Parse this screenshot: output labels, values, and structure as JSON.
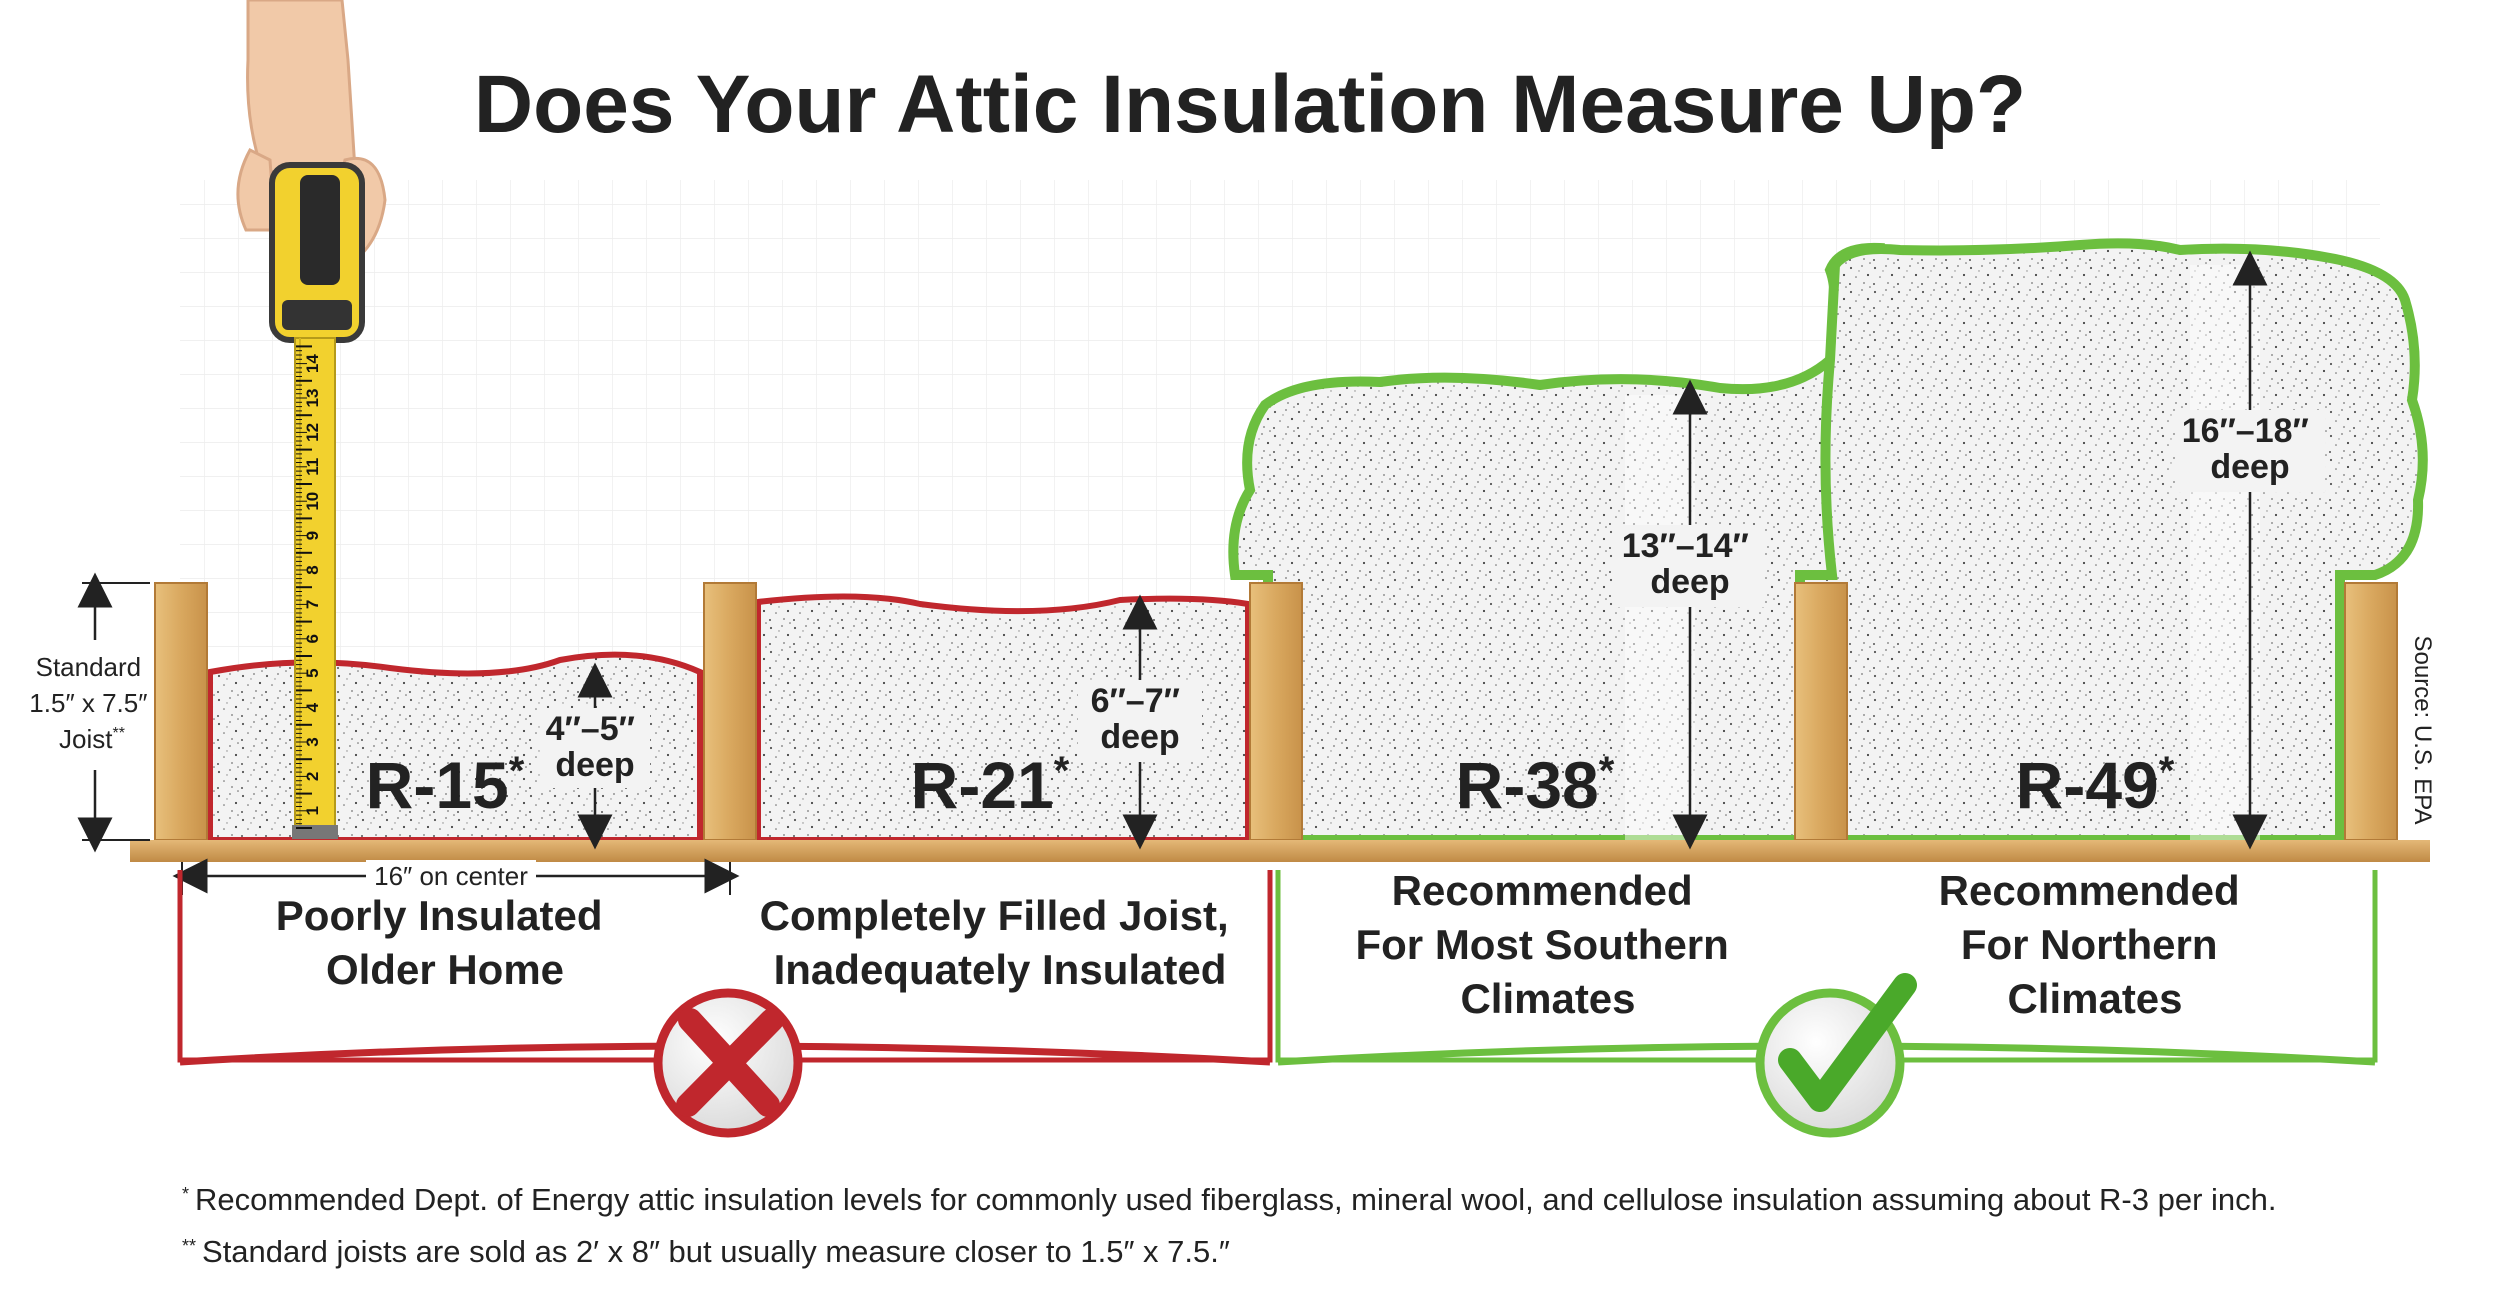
{
  "title": "Does Your Attic Insulation Measure Up?",
  "joist_label": {
    "line1": "Standard",
    "line2": "1.5″ x 7.5″",
    "line3": "Joist",
    "mark": "**"
  },
  "spacing_label": "16″ on center",
  "source": "Source: U.S. EPA",
  "levels": [
    {
      "r_value": "R-15",
      "mark": "*",
      "depth_line1": "4″–5″",
      "depth_line2": "deep",
      "caption": [
        "Poorly Insulated",
        "Older Home"
      ],
      "verdict": "inadequate"
    },
    {
      "r_value": "R-21",
      "mark": "*",
      "depth_line1": "6″–7″",
      "depth_line2": "deep",
      "caption": [
        "Completely Filled Joist,",
        "Inadequately Insulated"
      ],
      "verdict": "inadequate"
    },
    {
      "r_value": "R-38",
      "mark": "*",
      "depth_line1": "13″–14″",
      "depth_line2": "deep",
      "caption": [
        "Recommended",
        "For Most Southern",
        "Climates"
      ],
      "verdict": "recommended"
    },
    {
      "r_value": "R-49",
      "mark": "*",
      "depth_line1": "16″–18″",
      "depth_line2": "deep",
      "caption": [
        "Recommended",
        "For Northern",
        "Climates"
      ],
      "verdict": "recommended"
    }
  ],
  "tape_numbers": [
    "1",
    "2",
    "3",
    "4",
    "5",
    "6",
    "7",
    "8",
    "9",
    "10",
    "11",
    "12",
    "13",
    "14"
  ],
  "footnotes": [
    {
      "mark": "*",
      "text": "Recommended Dept. of Energy attic insulation levels for commonly used fiberglass, mineral wool, and cellulose insulation assuming about R-3 per inch."
    },
    {
      "mark": "**",
      "text": "Standard joists are sold as 2′ x 8″ but usually measure closer to 1.5″ x 7.5.″"
    }
  ],
  "icons": {
    "bad": "x-mark-icon",
    "good": "check-mark-icon",
    "tool": "tape-measure-icon"
  },
  "colors": {
    "bad": "#c0272d",
    "good": "#6cbf3f",
    "wood": "#d9a85f",
    "text": "#222222",
    "tape": "#f2d12e"
  }
}
